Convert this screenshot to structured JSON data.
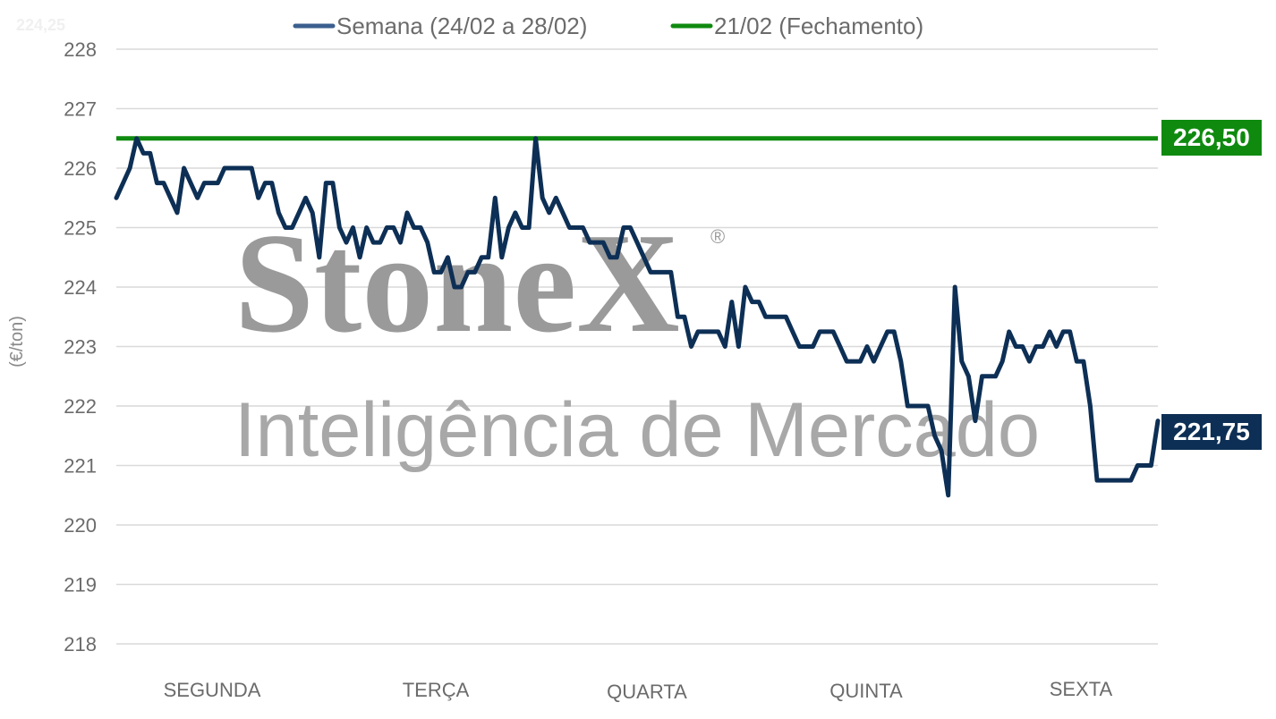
{
  "chart_data": {
    "type": "line",
    "ylabel": "(€/ton)",
    "ylim": [
      218,
      228
    ],
    "yticks": [
      "218",
      "219",
      "220",
      "221",
      "222",
      "223",
      "224",
      "225",
      "226",
      "227",
      "228"
    ],
    "xlabels": [
      "SEGUNDA",
      "TERÇA",
      "QUARTA",
      "QUINTA",
      "SEXTA"
    ],
    "grid": true,
    "legend_position": "top-center",
    "series": [
      {
        "name": "Semana (24/02 a 28/02)",
        "color": "#0d2f55",
        "values": [
          225.5,
          225.75,
          226.0,
          226.5,
          226.25,
          226.25,
          225.75,
          225.75,
          225.5,
          225.25,
          226.0,
          225.75,
          225.5,
          225.75,
          225.75,
          225.75,
          226.0,
          226.0,
          226.0,
          226.0,
          226.0,
          225.5,
          225.75,
          225.75,
          225.25,
          225.0,
          225.0,
          225.25,
          225.5,
          225.25,
          224.5,
          225.75,
          225.75,
          225.0,
          224.75,
          225.0,
          224.5,
          225.0,
          224.75,
          224.75,
          225.0,
          225.0,
          224.75,
          225.25,
          225.0,
          225.0,
          224.75,
          224.25,
          224.25,
          224.5,
          224.0,
          224.0,
          224.25,
          224.25,
          224.5,
          224.5,
          225.5,
          224.5,
          225.0,
          225.25,
          225.0,
          225.0,
          226.5,
          225.5,
          225.25,
          225.5,
          225.25,
          225.0,
          225.0,
          225.0,
          224.75,
          224.75,
          224.75,
          224.5,
          224.5,
          225.0,
          225.0,
          224.75,
          224.5,
          224.25,
          224.25,
          224.25,
          224.25,
          223.5,
          223.5,
          223.0,
          223.25,
          223.25,
          223.25,
          223.25,
          223.0,
          223.75,
          223.0,
          224.0,
          223.75,
          223.75,
          223.5,
          223.5,
          223.5,
          223.5,
          223.25,
          223.0,
          223.0,
          223.0,
          223.25,
          223.25,
          223.25,
          223.0,
          222.75,
          222.75,
          222.75,
          223.0,
          222.75,
          223.0,
          223.25,
          223.25,
          222.75,
          222.0,
          222.0,
          222.0,
          222.0,
          221.5,
          221.25,
          220.5,
          224.0,
          222.75,
          222.5,
          221.75,
          222.5,
          222.5,
          222.5,
          222.75,
          223.25,
          223.0,
          223.0,
          222.75,
          223.0,
          223.0,
          223.25,
          223.0,
          223.25,
          223.25,
          222.75,
          222.75,
          222.0,
          220.75,
          220.75,
          220.75,
          220.75,
          220.75,
          220.75,
          221.0,
          221.0,
          221.0,
          221.75
        ]
      },
      {
        "name": "21/02 (Fechamento)",
        "color": "#0f8a0f",
        "value": 226.5
      }
    ],
    "callouts": {
      "reference": "226,50",
      "last": "221,75"
    }
  },
  "watermark": {
    "brand": "StoneX",
    "registered": "®",
    "tagline": "Inteligência de Mercado"
  },
  "ghost_text": "224,25"
}
